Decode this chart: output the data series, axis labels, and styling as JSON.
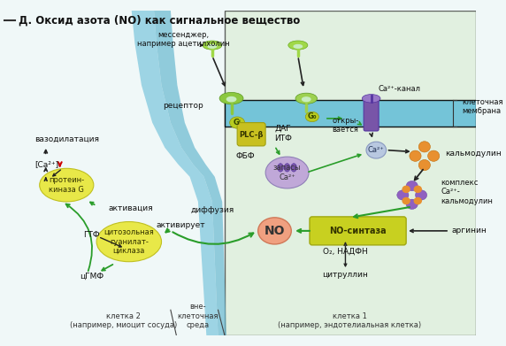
{
  "title": "Д. Оксид азота (NO) как сигнальное вещество",
  "bg_color": "#f0f8f8",
  "labels": {
    "title": "Д. Оксид азота (NO) как сигнальное вещество",
    "messenger": "мессенджер,\nнапример ацетилхолин",
    "receptor": "рецептор",
    "Gq": "Gⁱ",
    "G0": "G₀",
    "PLC": "PLC-β",
    "DAG": "ДАГ\nИТФ",
    "FBF": "ФБФ",
    "opens": "откры-\nвается",
    "Ca_channel": "Ca²⁺-канал",
    "cell_membrane": "клеточная\nмембрана",
    "calmodulin": "кальмодулин",
    "Ca_stores": "запасы\nCa²⁺",
    "Ca2plus": "Ca²⁺",
    "complex": "комплекс\nCa²⁺-\nкальмодулин",
    "NO_synthase": "NO-синтаза",
    "arginine": "аргинин",
    "O2_NADFH": "O₂, НАДФН",
    "citrulline": "цитруллин",
    "NO": "NO",
    "diffusion": "диффузия",
    "activates": "активирует",
    "cytosolic_gc": "цитозольная\nгуанилат-\nциклаза",
    "GTF": "ГТФ",
    "cGMF": "цГМФ",
    "protein_kinase": "протеин-\nкиназа G",
    "activation": "активация",
    "vasodilation": "вазодилатация",
    "Ca_conc": "[Ca²⁺]",
    "cell2": "клетка 2\n(например, миоцит сосуда)",
    "cell1": "клетка 1\n(например, эндотелиальная клетка)",
    "extracell": "вне-\nклеточная\nсреда"
  },
  "colors": {
    "green_arrow": "#2a9d2a",
    "black_arrow": "#222222",
    "red_down": "#cc0000",
    "receptor_green": "#9dd050",
    "PLC_yellow": "#c8c020",
    "NO_synthase_yellow": "#c8d020",
    "calmodulin_orange": "#e89030",
    "complex_purple": "#9060c0",
    "NO_pink": "#f0a080",
    "cytosol_yellow": "#e8e848",
    "protein_kinase_yellow": "#e8e848",
    "Ca_store_purple": "#c0a8d8",
    "Ca_ion_gray": "#c0c8d8",
    "channel_purple": "#7855a8",
    "membrane_blue": "#78c8e0",
    "vessel_light": "#b0dce8",
    "cell1_bg": "#d8e8c8",
    "cell2_bg": "#c8e0e8"
  }
}
